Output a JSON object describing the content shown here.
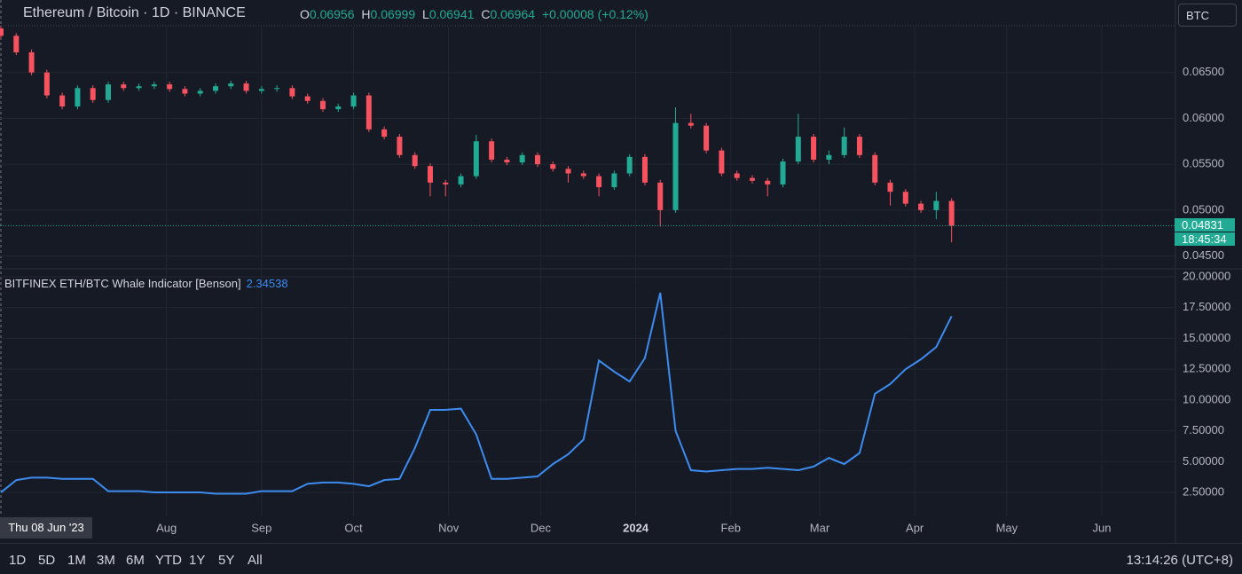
{
  "header": {
    "title": "Ethereum / Bitcoin · 1D · BINANCE",
    "ohlc": [
      {
        "key": "O",
        "value": "0.06956"
      },
      {
        "key": "H",
        "value": "0.06999"
      },
      {
        "key": "L",
        "value": "0.06941"
      },
      {
        "key": "C",
        "value": "0.06964"
      }
    ],
    "change": "+0.00008 (+0.12%)",
    "currency": "BTC"
  },
  "crosshair_date": "Thu 08 Jun '23",
  "toolbar": {
    "ranges": [
      "1D",
      "5D",
      "1M",
      "3M",
      "6M",
      "YTD",
      "1Y",
      "5Y",
      "All"
    ],
    "clock": "13:14:26 (UTC+8)"
  },
  "chart_data": [
    {
      "type": "candlestick",
      "up_color": "#22ab94",
      "down_color": "#f7525f",
      "grid": true,
      "x": [
        "2023-06-08",
        "2023-06-13",
        "2023-06-18",
        "2023-06-23",
        "2023-06-28",
        "2023-07-03",
        "2023-07-08",
        "2023-07-13",
        "2023-07-18",
        "2023-07-23",
        "2023-07-28",
        "2023-08-02",
        "2023-08-07",
        "2023-08-12",
        "2023-08-17",
        "2023-08-22",
        "2023-08-27",
        "2023-09-01",
        "2023-09-06",
        "2023-09-11",
        "2023-09-16",
        "2023-09-21",
        "2023-09-26",
        "2023-10-01",
        "2023-10-06",
        "2023-10-11",
        "2023-10-16",
        "2023-10-21",
        "2023-10-26",
        "2023-10-31",
        "2023-11-05",
        "2023-11-10",
        "2023-11-15",
        "2023-11-20",
        "2023-11-25",
        "2023-11-30",
        "2023-12-05",
        "2023-12-10",
        "2023-12-15",
        "2023-12-20",
        "2023-12-25",
        "2023-12-30",
        "2024-01-04",
        "2024-01-09",
        "2024-01-14",
        "2024-01-19",
        "2024-01-24",
        "2024-01-29",
        "2024-02-03",
        "2024-02-08",
        "2024-02-13",
        "2024-02-18",
        "2024-02-23",
        "2024-02-28",
        "2024-03-04",
        "2024-03-09",
        "2024-03-14",
        "2024-03-19",
        "2024-03-24",
        "2024-03-29",
        "2024-04-03",
        "2024-04-08",
        "2024-04-13"
      ],
      "open": [
        0.0698,
        0.069,
        0.0672,
        0.065,
        0.0625,
        0.0613,
        0.0633,
        0.062,
        0.0637,
        0.0633,
        0.0635,
        0.0637,
        0.0632,
        0.0627,
        0.063,
        0.0635,
        0.0638,
        0.063,
        0.0632,
        0.0633,
        0.0624,
        0.0619,
        0.061,
        0.0613,
        0.0625,
        0.0588,
        0.058,
        0.056,
        0.0548,
        0.053,
        0.0528,
        0.0537,
        0.0575,
        0.0555,
        0.0552,
        0.056,
        0.055,
        0.0545,
        0.054,
        0.0537,
        0.0525,
        0.054,
        0.0558,
        0.053,
        0.05,
        0.0595,
        0.0592,
        0.0565,
        0.054,
        0.0535,
        0.0532,
        0.0528,
        0.0553,
        0.058,
        0.0555,
        0.056,
        0.058,
        0.056,
        0.053,
        0.052,
        0.0507,
        0.05,
        0.051
      ],
      "high": [
        0.0701,
        0.0693,
        0.0675,
        0.0653,
        0.0628,
        0.0636,
        0.0636,
        0.064,
        0.064,
        0.0638,
        0.064,
        0.064,
        0.0635,
        0.0633,
        0.0638,
        0.0641,
        0.0641,
        0.0635,
        0.0636,
        0.0636,
        0.0627,
        0.0622,
        0.0616,
        0.0628,
        0.0628,
        0.0591,
        0.0583,
        0.0563,
        0.0551,
        0.0533,
        0.054,
        0.0582,
        0.0578,
        0.0558,
        0.0563,
        0.0563,
        0.0553,
        0.0548,
        0.0543,
        0.054,
        0.0543,
        0.0561,
        0.0561,
        0.0533,
        0.0612,
        0.0605,
        0.0595,
        0.0568,
        0.0543,
        0.0538,
        0.0535,
        0.0556,
        0.0605,
        0.0583,
        0.0565,
        0.059,
        0.0583,
        0.0563,
        0.0533,
        0.0523,
        0.051,
        0.052,
        0.0513
      ],
      "low": [
        0.0687,
        0.0669,
        0.0647,
        0.0622,
        0.061,
        0.061,
        0.0617,
        0.0617,
        0.063,
        0.063,
        0.0632,
        0.0629,
        0.0624,
        0.0624,
        0.0627,
        0.0632,
        0.0627,
        0.0627,
        0.0629,
        0.0621,
        0.0616,
        0.0607,
        0.0607,
        0.061,
        0.0585,
        0.0577,
        0.0557,
        0.0545,
        0.0515,
        0.0515,
        0.0525,
        0.0534,
        0.0552,
        0.0549,
        0.0549,
        0.0547,
        0.0542,
        0.053,
        0.0534,
        0.0515,
        0.0522,
        0.0537,
        0.0527,
        0.0482,
        0.0497,
        0.0589,
        0.0562,
        0.0537,
        0.0532,
        0.0529,
        0.0515,
        0.0525,
        0.055,
        0.0552,
        0.055,
        0.0557,
        0.0557,
        0.0527,
        0.0505,
        0.0504,
        0.0497,
        0.049,
        0.0465
      ],
      "close": [
        0.069,
        0.0672,
        0.065,
        0.0625,
        0.0613,
        0.0633,
        0.062,
        0.0637,
        0.0633,
        0.0635,
        0.0637,
        0.0632,
        0.0627,
        0.063,
        0.0635,
        0.0638,
        0.063,
        0.0632,
        0.0633,
        0.0624,
        0.0619,
        0.061,
        0.0613,
        0.0625,
        0.0588,
        0.058,
        0.056,
        0.0548,
        0.053,
        0.0528,
        0.0537,
        0.0575,
        0.0555,
        0.0552,
        0.056,
        0.055,
        0.0545,
        0.054,
        0.0537,
        0.0525,
        0.054,
        0.0558,
        0.053,
        0.05,
        0.0595,
        0.0592,
        0.0565,
        0.054,
        0.0535,
        0.0532,
        0.0528,
        0.0553,
        0.058,
        0.0555,
        0.056,
        0.058,
        0.056,
        0.053,
        0.052,
        0.0507,
        0.05,
        0.051,
        0.0483
      ],
      "xlim": [
        "2023-06-08",
        "2024-06-25"
      ],
      "xticks": [
        {
          "value": "2023-08-01",
          "label": "Aug"
        },
        {
          "value": "2023-09-01",
          "label": "Sep"
        },
        {
          "value": "2023-10-01",
          "label": "Oct"
        },
        {
          "value": "2023-11-01",
          "label": "Nov"
        },
        {
          "value": "2023-12-01",
          "label": "Dec"
        },
        {
          "value": "2024-01-01",
          "label": "2024"
        },
        {
          "value": "2024-02-01",
          "label": "Feb"
        },
        {
          "value": "2024-03-01",
          "label": "Mar"
        },
        {
          "value": "2024-04-01",
          "label": "Apr"
        },
        {
          "value": "2024-05-01",
          "label": "May"
        },
        {
          "value": "2024-06-01",
          "label": "Jun"
        }
      ],
      "ylim": [
        0.0437,
        0.07
      ],
      "yticks": [
        {
          "value": 0.045,
          "label": "0.04500"
        },
        {
          "value": 0.05,
          "label": "0.05000"
        },
        {
          "value": 0.055,
          "label": "0.05500"
        },
        {
          "value": 0.06,
          "label": "0.06000"
        },
        {
          "value": 0.065,
          "label": "0.06500"
        }
      ],
      "last_price": 0.04831,
      "countdown": "18:45:34"
    },
    {
      "type": "line",
      "title": "BITFINEX ETH/BTC Whale Indicator [Benson]",
      "value_label": "2.34538",
      "grid": true,
      "series": [
        {
          "color": "#3d8cf0",
          "values": [
            2.5,
            3.5,
            3.7,
            3.7,
            3.6,
            3.6,
            3.6,
            2.6,
            2.6,
            2.6,
            2.5,
            2.5,
            2.5,
            2.5,
            2.4,
            2.4,
            2.4,
            2.6,
            2.6,
            2.6,
            3.2,
            3.3,
            3.3,
            3.2,
            3.0,
            3.5,
            3.6,
            6.1,
            9.2,
            9.2,
            9.3,
            7.2,
            3.6,
            3.6,
            3.7,
            3.8,
            4.8,
            5.6,
            6.8,
            13.2,
            12.3,
            11.5,
            13.4,
            18.7,
            7.5,
            4.3,
            4.2,
            4.3,
            4.4,
            4.4,
            4.5,
            4.4,
            4.3,
            4.6,
            5.3,
            4.8,
            5.7,
            10.5,
            11.3,
            12.5,
            13.3,
            14.3,
            16.8
          ]
        }
      ],
      "ylim": [
        0.56,
        20.5
      ],
      "yticks": [
        {
          "value": 2.5,
          "label": "2.50000"
        },
        {
          "value": 5,
          "label": "5.00000"
        },
        {
          "value": 7.5,
          "label": "7.50000"
        },
        {
          "value": 10,
          "label": "10.00000"
        },
        {
          "value": 12.5,
          "label": "12.50000"
        },
        {
          "value": 15,
          "label": "15.00000"
        },
        {
          "value": 17.5,
          "label": "17.50000"
        },
        {
          "value": 20,
          "label": "20.00000"
        }
      ]
    }
  ]
}
